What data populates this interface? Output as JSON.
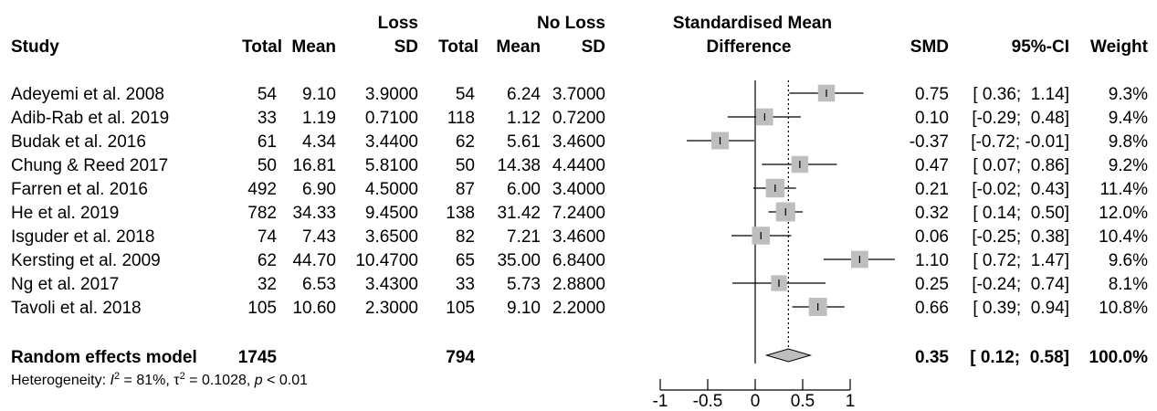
{
  "headers": {
    "group1": "Loss",
    "group2": "No Loss",
    "study": "Study",
    "total1": "Total",
    "mean1": "Mean",
    "sd1": "SD",
    "total2": "Total",
    "mean2": "Mean",
    "sd2": "SD",
    "plot_line1": "Standardised Mean",
    "plot_line2": "Difference",
    "smd": "SMD",
    "ci": "95%-CI",
    "weight": "Weight"
  },
  "heterogeneity": {
    "prefix": "Heterogeneity: ",
    "i2_symbol": "I",
    "i2_sup": "2",
    "i2_value": " = 81%, ",
    "tau_symbol": "τ",
    "tau_sup": "2",
    "tau_value": " = 0.1028, ",
    "p_symbol": "p",
    "p_value": " < 0.01"
  },
  "chart_data": {
    "type": "forest",
    "xlim": [
      -1,
      1
    ],
    "xticks": [
      -1,
      -0.5,
      0,
      0.5,
      1
    ],
    "xtick_labels": [
      "-1",
      "-0.5",
      "0",
      "0.5",
      "1"
    ],
    "null_line": 0,
    "pooled_line": 0.35,
    "studies": [
      {
        "name": "Adeyemi et al. 2008",
        "total1": "54",
        "mean1": "9.10",
        "sd1": "3.9000",
        "total2": "54",
        "mean2": "6.24",
        "sd2": "3.7000",
        "smd": 0.75,
        "lo": 0.36,
        "hi": 1.14,
        "weight": 9.3,
        "smd_text": "0.75",
        "ci_text": "[ 0.36;  1.14]",
        "weight_text": "9.3%"
      },
      {
        "name": "Adib-Rab et al. 2019",
        "total1": "33",
        "mean1": "1.19",
        "sd1": "0.7100",
        "total2": "118",
        "mean2": "1.12",
        "sd2": "0.7200",
        "smd": 0.1,
        "lo": -0.29,
        "hi": 0.48,
        "weight": 9.4,
        "smd_text": "0.10",
        "ci_text": "[-0.29;  0.48]",
        "weight_text": "9.4%"
      },
      {
        "name": "Budak et al. 2016",
        "total1": "61",
        "mean1": "4.34",
        "sd1": "3.4400",
        "total2": "62",
        "mean2": "5.61",
        "sd2": "3.4600",
        "smd": -0.37,
        "lo": -0.72,
        "hi": -0.01,
        "weight": 9.8,
        "smd_text": "-0.37",
        "ci_text": "[-0.72; -0.01]",
        "weight_text": "9.8%"
      },
      {
        "name": "Chung & Reed 2017",
        "total1": "50",
        "mean1": "16.81",
        "sd1": "5.8100",
        "total2": "50",
        "mean2": "14.38",
        "sd2": "4.4400",
        "smd": 0.47,
        "lo": 0.07,
        "hi": 0.86,
        "weight": 9.2,
        "smd_text": "0.47",
        "ci_text": "[ 0.07;  0.86]",
        "weight_text": "9.2%"
      },
      {
        "name": "Farren et al. 2016",
        "total1": "492",
        "mean1": "6.90",
        "sd1": "4.5000",
        "total2": "87",
        "mean2": "6.00",
        "sd2": "3.4000",
        "smd": 0.21,
        "lo": -0.02,
        "hi": 0.43,
        "weight": 11.4,
        "smd_text": "0.21",
        "ci_text": "[-0.02;  0.43]",
        "weight_text": "11.4%"
      },
      {
        "name": "He et al. 2019",
        "total1": "782",
        "mean1": "34.33",
        "sd1": "9.4500",
        "total2": "138",
        "mean2": "31.42",
        "sd2": "7.2400",
        "smd": 0.32,
        "lo": 0.14,
        "hi": 0.5,
        "weight": 12.0,
        "smd_text": "0.32",
        "ci_text": "[ 0.14;  0.50]",
        "weight_text": "12.0%"
      },
      {
        "name": "Isguder et al. 2018",
        "total1": "74",
        "mean1": "7.43",
        "sd1": "3.6500",
        "total2": "82",
        "mean2": "7.21",
        "sd2": "3.4600",
        "smd": 0.06,
        "lo": -0.25,
        "hi": 0.38,
        "weight": 10.4,
        "smd_text": "0.06",
        "ci_text": "[-0.25;  0.38]",
        "weight_text": "10.4%"
      },
      {
        "name": "Kersting et al. 2009",
        "total1": "62",
        "mean1": "44.70",
        "sd1": "10.4700",
        "total2": "65",
        "mean2": "35.00",
        "sd2": "6.8400",
        "smd": 1.1,
        "lo": 0.72,
        "hi": 1.47,
        "weight": 9.6,
        "smd_text": "1.10",
        "ci_text": "[ 0.72;  1.47]",
        "weight_text": "9.6%"
      },
      {
        "name": "Ng et al. 2017",
        "total1": "32",
        "mean1": "6.53",
        "sd1": "3.4300",
        "total2": "33",
        "mean2": "5.73",
        "sd2": "2.8800",
        "smd": 0.25,
        "lo": -0.24,
        "hi": 0.74,
        "weight": 8.1,
        "smd_text": "0.25",
        "ci_text": "[-0.24;  0.74]",
        "weight_text": "8.1%"
      },
      {
        "name": "Tavoli et al. 2018",
        "total1": "105",
        "mean1": "10.60",
        "sd1": "2.3000",
        "total2": "105",
        "mean2": "9.10",
        "sd2": "2.2000",
        "smd": 0.66,
        "lo": 0.39,
        "hi": 0.94,
        "weight": 10.8,
        "smd_text": "0.66",
        "ci_text": "[ 0.39;  0.94]",
        "weight_text": "10.8%"
      }
    ],
    "summary": {
      "name": "Random effects model",
      "total1": "1745",
      "total2": "794",
      "smd": 0.35,
      "lo": 0.12,
      "hi": 0.58,
      "smd_text": "0.35",
      "ci_text": "[ 0.12;  0.58]",
      "weight_text": "100.0%"
    },
    "colors": {
      "square": "#bebebe",
      "diamond": "#bebebe",
      "line": "#000000"
    }
  }
}
